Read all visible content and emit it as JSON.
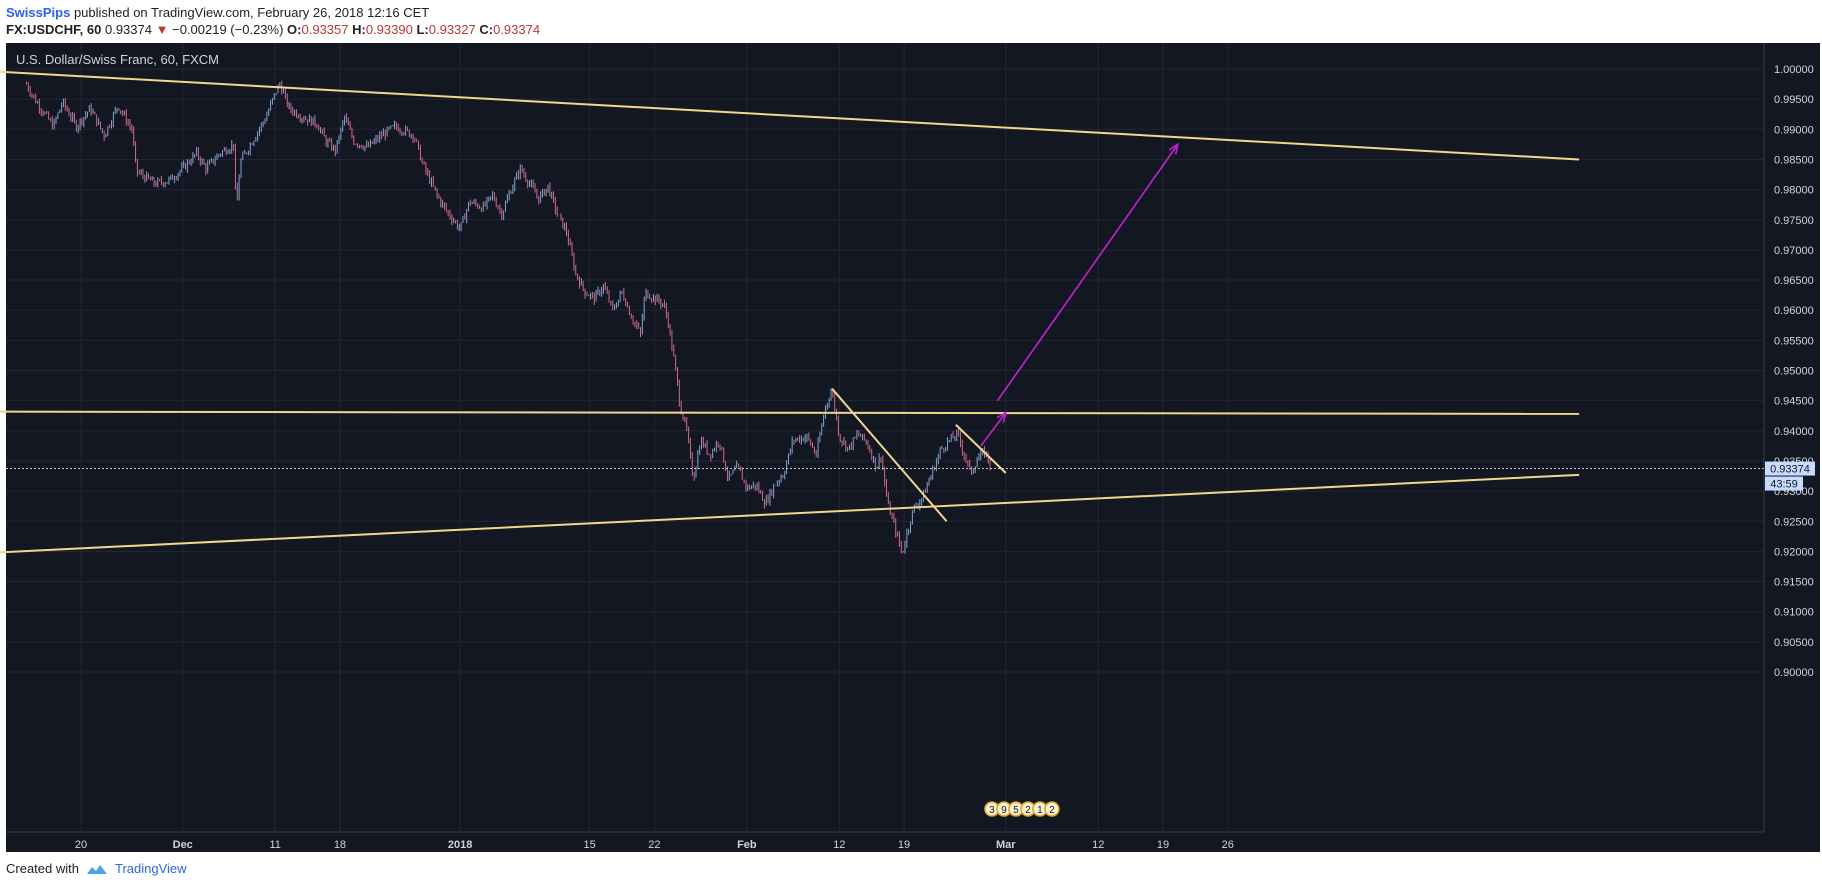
{
  "header": {
    "author": "SwissPips",
    "published_text": "published on TradingView.com, February 26, 2018 12:16 CET",
    "symbol": "FX:USDCHF, 60",
    "last": "0.93374",
    "arrow": "▼",
    "change": "−0.00219 (−0.23%)",
    "o_label": "O:",
    "o_value": "0.93357",
    "h_label": "H:",
    "h_value": "0.93390",
    "l_label": "L:",
    "l_value": "0.93327",
    "c_label": "C:",
    "c_value": "0.93374"
  },
  "footer": {
    "created_with": "Created with",
    "brand": "TradingView",
    "logo_icon": "tradingview-cloud-icon"
  },
  "colors": {
    "background": "#131722",
    "grid": "#232734",
    "trendline": "#f0d78c",
    "arrow": "#c71fd3",
    "candle_up": "#7fa6d6",
    "candle_down": "#d46a8a",
    "price_tag": "#c6dbff"
  },
  "chart_data": {
    "type": "candlestick",
    "title": "U.S. Dollar/Swiss Franc, 60, FXCM",
    "ylim": [
      0.8985,
      1.0062
    ],
    "y_ticks": [
      "1.00000",
      "0.99500",
      "0.99000",
      "0.98500",
      "0.98000",
      "0.97500",
      "0.97000",
      "0.96500",
      "0.96000",
      "0.95500",
      "0.95000",
      "0.94500",
      "0.94000",
      "0.93500",
      "0.93000",
      "0.92500",
      "0.92000",
      "0.91500",
      "0.91000",
      "0.90500",
      "0.90000"
    ],
    "x_ticks": [
      {
        "label": "20",
        "day": 20
      },
      {
        "label": "Dec",
        "day": 31
      },
      {
        "label": "11",
        "day": 41
      },
      {
        "label": "18",
        "day": 48
      },
      {
        "label": "2018",
        "day": 61
      },
      {
        "label": "15",
        "day": 75
      },
      {
        "label": "22",
        "day": 82
      },
      {
        "label": "Feb",
        "day": 92
      },
      {
        "label": "12",
        "day": 102
      },
      {
        "label": "19",
        "day": 109
      },
      {
        "label": "Mar",
        "day": 120
      },
      {
        "label": "12",
        "day": 130
      },
      {
        "label": "19",
        "day": 137
      },
      {
        "label": "26",
        "day": 144
      }
    ],
    "current_price": "0.93374",
    "countdown": "43:59",
    "price_path": [
      [
        14.1,
        0.9975
      ],
      [
        15,
        0.995
      ],
      [
        17,
        0.9905
      ],
      [
        18,
        0.9945
      ],
      [
        19.5,
        0.9905
      ],
      [
        21,
        0.9935
      ],
      [
        22.5,
        0.989
      ],
      [
        24,
        0.994
      ],
      [
        25.5,
        0.99
      ],
      [
        26,
        0.983
      ],
      [
        28,
        0.981
      ],
      [
        29.5,
        0.9815
      ],
      [
        31,
        0.9835
      ],
      [
        32.5,
        0.986
      ],
      [
        33.5,
        0.9835
      ],
      [
        35,
        0.986
      ],
      [
        36.5,
        0.9875
      ],
      [
        36.8,
        0.976
      ],
      [
        37.2,
        0.9845
      ],
      [
        38.5,
        0.988
      ],
      [
        40,
        0.992
      ],
      [
        41,
        0.996
      ],
      [
        41.5,
        0.9975
      ],
      [
        42.5,
        0.9935
      ],
      [
        44,
        0.992
      ],
      [
        45.5,
        0.991
      ],
      [
        46.5,
        0.988
      ],
      [
        47.5,
        0.9865
      ],
      [
        48.5,
        0.992
      ],
      [
        49.5,
        0.988
      ],
      [
        51,
        0.987
      ],
      [
        52.5,
        0.989
      ],
      [
        54,
        0.9905
      ],
      [
        56,
        0.989
      ],
      [
        57,
        0.984
      ],
      [
        58.5,
        0.979
      ],
      [
        59.5,
        0.9765
      ],
      [
        61,
        0.9735
      ],
      [
        62,
        0.978
      ],
      [
        63.5,
        0.977
      ],
      [
        64.5,
        0.979
      ],
      [
        65.5,
        0.976
      ],
      [
        66.5,
        0.98
      ],
      [
        67.5,
        0.9835
      ],
      [
        68.5,
        0.981
      ],
      [
        69.5,
        0.9785
      ],
      [
        70.5,
        0.9805
      ],
      [
        71.5,
        0.976
      ],
      [
        72.5,
        0.973
      ],
      [
        73.5,
        0.966
      ],
      [
        74.5,
        0.963
      ],
      [
        75.5,
        0.962
      ],
      [
        76.5,
        0.964
      ],
      [
        77.5,
        0.96
      ],
      [
        78.5,
        0.963
      ],
      [
        79.5,
        0.959
      ],
      [
        80.5,
        0.956
      ],
      [
        81,
        0.963
      ],
      [
        82,
        0.962
      ],
      [
        83,
        0.961
      ],
      [
        83.5,
        0.958
      ],
      [
        84.3,
        0.95
      ],
      [
        84.8,
        0.944
      ],
      [
        85.5,
        0.94
      ],
      [
        86.2,
        0.932
      ],
      [
        87,
        0.9385
      ],
      [
        88,
        0.936
      ],
      [
        89,
        0.9385
      ],
      [
        90,
        0.932
      ],
      [
        91,
        0.934
      ],
      [
        92,
        0.9305
      ],
      [
        93,
        0.931
      ],
      [
        94,
        0.928
      ],
      [
        95,
        0.931
      ],
      [
        96,
        0.933
      ],
      [
        97,
        0.9385
      ],
      [
        98.5,
        0.939
      ],
      [
        99.5,
        0.936
      ],
      [
        100.5,
        0.944
      ],
      [
        101.2,
        0.9468
      ],
      [
        102,
        0.939
      ],
      [
        103,
        0.937
      ],
      [
        104,
        0.9395
      ],
      [
        105,
        0.938
      ],
      [
        106,
        0.934
      ],
      [
        106.5,
        0.936
      ],
      [
        107.2,
        0.928
      ],
      [
        108,
        0.924
      ],
      [
        108.8,
        0.9195
      ],
      [
        109.3,
        0.923
      ],
      [
        110,
        0.927
      ],
      [
        111,
        0.929
      ],
      [
        112,
        0.933
      ],
      [
        113,
        0.937
      ],
      [
        114,
        0.9385
      ],
      [
        114.8,
        0.9395
      ],
      [
        115.5,
        0.936
      ],
      [
        116.2,
        0.933
      ],
      [
        117,
        0.9355
      ],
      [
        117.8,
        0.9365
      ],
      [
        118.5,
        0.9337
      ]
    ],
    "trendlines": [
      {
        "from": [
          0,
          1.0005
        ],
        "to": [
          182,
          0.985
        ]
      },
      {
        "from": [
          0,
          0.9432
        ],
        "to": [
          182,
          0.9428
        ]
      },
      {
        "from": [
          0,
          0.919
        ],
        "to": [
          182,
          0.9327
        ]
      },
      {
        "from": [
          101.2,
          0.947
        ],
        "to": [
          113.6,
          0.925
        ]
      },
      {
        "from": [
          114.6,
          0.941
        ],
        "to": [
          120,
          0.933
        ]
      }
    ],
    "arrows": [
      {
        "from": [
          117.3,
          0.9375
        ],
        "to": [
          120,
          0.943
        ]
      },
      {
        "from": [
          119.1,
          0.945
        ],
        "to": [
          138.6,
          0.9875
        ]
      }
    ],
    "event_markers": [
      "3",
      "9",
      "5",
      "2",
      "1",
      "2"
    ]
  }
}
